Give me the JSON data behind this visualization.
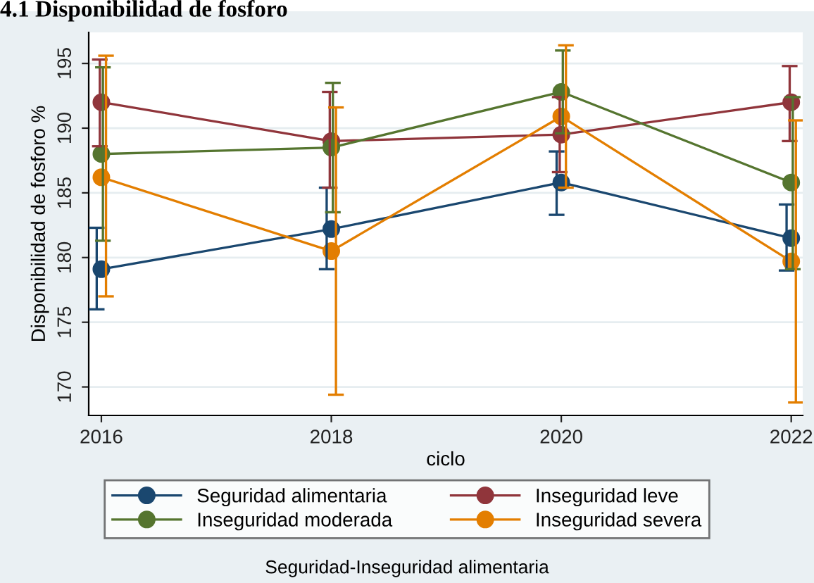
{
  "chart_data": {
    "type": "line",
    "title": "4.1 Disponibilidad de fosforo",
    "xlabel": "ciclo",
    "ylabel": "Disponibilidad de fosforo %",
    "legend_title": "Seguridad-Inseguridad alimentaria",
    "x": [
      2016,
      2018,
      2020,
      2022
    ],
    "xlim": [
      2015.89,
      2022.1
    ],
    "xticks": [
      2016,
      2018,
      2020,
      2022
    ],
    "ylim": [
      167.8,
      197.4
    ],
    "yticks": [
      170,
      175,
      180,
      185,
      190,
      195
    ],
    "grid": "y",
    "legend": "bottom",
    "marker": "circle",
    "line_style": "solid",
    "series": [
      {
        "name": "Seguridad alimentaria",
        "color": "#1a476f",
        "values": [
          179.1,
          182.2,
          185.8,
          181.5
        ],
        "errors": [
          [
            176.0,
            182.3
          ],
          [
            179.1,
            185.4
          ],
          [
            183.3,
            188.2
          ],
          [
            179.0,
            184.1
          ]
        ]
      },
      {
        "name": "Inseguridad leve",
        "color": "#90353b",
        "values": [
          192.0,
          189.0,
          189.5,
          192.0
        ],
        "errors": [
          [
            188.6,
            195.3
          ],
          [
            185.4,
            192.8
          ],
          [
            186.6,
            192.4
          ],
          [
            189.0,
            194.8
          ]
        ]
      },
      {
        "name": "Inseguridad moderada",
        "color": "#55752f",
        "values": [
          188.0,
          188.5,
          192.8,
          185.8
        ],
        "errors": [
          [
            181.3,
            194.7
          ],
          [
            183.5,
            193.5
          ],
          [
            189.6,
            196.0
          ],
          [
            179.1,
            192.4
          ]
        ]
      },
      {
        "name": "Inseguridad severa",
        "color": "#e37e00",
        "values": [
          186.2,
          180.5,
          190.9,
          179.7
        ],
        "errors": [
          [
            177.0,
            195.6
          ],
          [
            169.4,
            191.6
          ],
          [
            185.4,
            196.4
          ],
          [
            168.8,
            190.6
          ]
        ]
      }
    ]
  }
}
